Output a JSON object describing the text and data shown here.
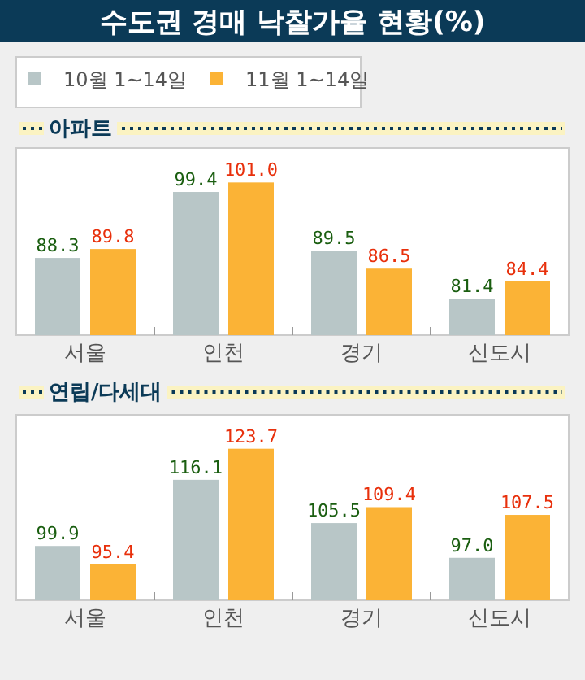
{
  "chart_data": [
    {
      "type": "bar",
      "title": "수도권 경매 낙찰가율 현황(%)",
      "subtitle": "아파트",
      "categories": [
        "서울",
        "인천",
        "경기",
        "신도시"
      ],
      "series": [
        {
          "name": "10월 1~14일",
          "color": "#b8c6c7",
          "values": [
            88.3,
            99.4,
            89.5,
            81.4
          ],
          "value_labels": [
            "88.3",
            "99.4",
            "89.5",
            "81.4"
          ]
        },
        {
          "name": "11월 1~14일",
          "color": "#fbb336",
          "values": [
            89.8,
            101.0,
            86.5,
            84.4
          ],
          "value_labels": [
            "89.8",
            "101.0",
            "86.5",
            "84.4"
          ]
        }
      ],
      "ylim": [
        75.3,
        106.8
      ],
      "tick_labels": "x",
      "legend": "top"
    },
    {
      "type": "bar",
      "title": "연립/다세대",
      "categories": [
        "서울",
        "인천",
        "경기",
        "신도시"
      ],
      "series": [
        {
          "color": "#b8c6c7",
          "values": [
            99.9,
            116.1,
            105.5,
            97.0
          ],
          "value_labels": [
            "99.9",
            "116.1",
            "105.5",
            "97.0"
          ]
        },
        {
          "color": "#fbb336",
          "values": [
            95.4,
            123.7,
            109.4,
            107.5
          ],
          "value_labels": [
            "95.4",
            "123.7",
            "109.4",
            "107.5"
          ]
        }
      ],
      "ylim": [
        86.6,
        132.0
      ],
      "tick_labels": "x"
    }
  ]
}
